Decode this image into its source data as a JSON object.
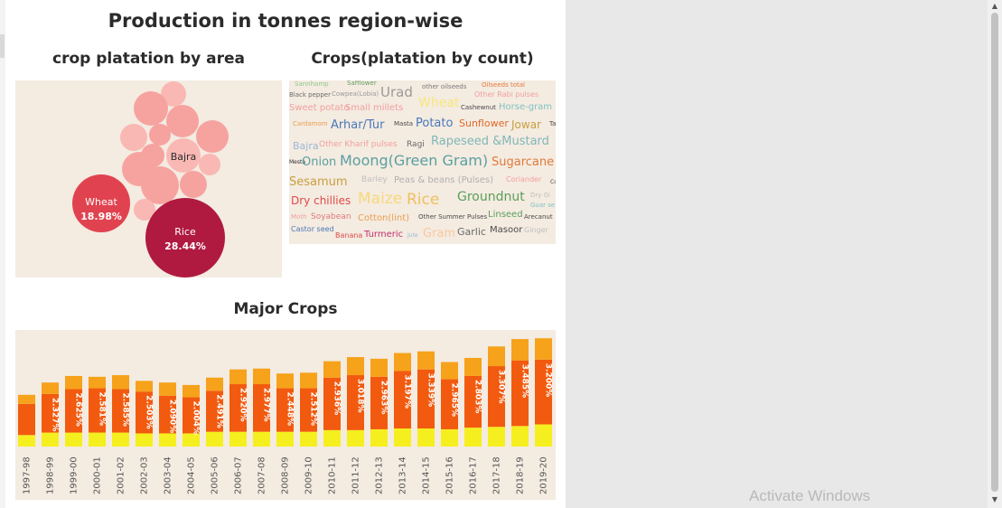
{
  "dashboard": {
    "title": "Production in tonnes region-wise"
  },
  "bubble": {
    "title": "crop platation by area",
    "labels": [
      {
        "name": "Wheat",
        "pct": "18.98%"
      },
      {
        "name": "Rice",
        "pct": "28.44%"
      },
      {
        "name": "Bajra",
        "pct": ""
      }
    ],
    "colors": {
      "wheat": "#e0434f",
      "rice": "#b01a40",
      "other": "#f6a3a0",
      "light": "#f9b8b3"
    }
  },
  "wordcloud": {
    "title": "Crops(platation by count)",
    "words": [
      {
        "text": "Sannhamp",
        "color": "#8fc98f"
      },
      {
        "text": "Safflower",
        "color": "#5fa05f"
      },
      {
        "text": "other oilseeds",
        "color": "#7a7a7a"
      },
      {
        "text": "Oilseeds total",
        "color": "#e57a3c"
      },
      {
        "text": "Black pepper",
        "color": "#6a6a6a"
      },
      {
        "text": "Cowpea(Lobia)",
        "color": "#9a9a9a"
      },
      {
        "text": "Urad",
        "color": "#9a9a9a"
      },
      {
        "text": "Other Rabi pulses",
        "color": "#f2a0a0"
      },
      {
        "text": "Sweet potato",
        "color": "#f2a0a0"
      },
      {
        "text": "Small millets",
        "color": "#f2a0a0"
      },
      {
        "text": "Wheat",
        "color": "#f8e87a"
      },
      {
        "text": "Cashewnut",
        "color": "#4a4a4a"
      },
      {
        "text": "Horse-gram",
        "color": "#7fc4c4"
      },
      {
        "text": "Cardamom",
        "color": "#e8a050"
      },
      {
        "text": "Arhar/Tur",
        "color": "#4a78b8"
      },
      {
        "text": "Masta",
        "color": "#4a4a4a"
      },
      {
        "text": "Potato",
        "color": "#4a78b8"
      },
      {
        "text": "Sunflower",
        "color": "#e06a2a"
      },
      {
        "text": "Jowar",
        "color": "#c8a040"
      },
      {
        "text": "Ta",
        "color": "#4a4a4a"
      },
      {
        "text": "Bajra",
        "color": "#9ab8d8"
      },
      {
        "text": "Other Kharif pulses",
        "color": "#f2a0a0"
      },
      {
        "text": "Ragi",
        "color": "#6a6a6a"
      },
      {
        "text": "Rapeseed &Mustard",
        "color": "#7fb8b8"
      },
      {
        "text": "Mesta",
        "color": "#2b2b2b"
      },
      {
        "text": "Onion",
        "color": "#5aa0a0"
      },
      {
        "text": "Moong(Green Gram)",
        "color": "#5aa0a0"
      },
      {
        "text": "Sugarcane",
        "color": "#e07a3a"
      },
      {
        "text": "Sesamum",
        "color": "#c8a040"
      },
      {
        "text": "Barley",
        "color": "#c0c0c0"
      },
      {
        "text": "Peas & beans (Pulses)",
        "color": "#b0b0b0"
      },
      {
        "text": "Coriander",
        "color": "#f2a0a0"
      },
      {
        "text": "Co",
        "color": "#4a4a4a"
      },
      {
        "text": "Dry chillies",
        "color": "#e04a4a"
      },
      {
        "text": "Maize",
        "color": "#f8d87a"
      },
      {
        "text": "Rice",
        "color": "#f0c060"
      },
      {
        "text": "Groundnut",
        "color": "#5aa05a"
      },
      {
        "text": "Dry Gi",
        "color": "#c0c0c0"
      },
      {
        "text": "Guar se",
        "color": "#7fc4c4"
      },
      {
        "text": "Moth",
        "color": "#f2a0a0"
      },
      {
        "text": "Soyabean",
        "color": "#e07a7a"
      },
      {
        "text": "Cotton(lint)",
        "color": "#e8a050"
      },
      {
        "text": "Other Summer Pulses",
        "color": "#4a4a4a"
      },
      {
        "text": "Linseed",
        "color": "#5aa05a"
      },
      {
        "text": "Arecanut",
        "color": "#4a4a4a"
      },
      {
        "text": "Castor seed",
        "color": "#4a78b8"
      },
      {
        "text": "Banana",
        "color": "#e04a4a"
      },
      {
        "text": "Turmeric",
        "color": "#c03070"
      },
      {
        "text": "Jute",
        "color": "#9ab8d8"
      },
      {
        "text": "Gram",
        "color": "#f8c8a0"
      },
      {
        "text": "Garlic",
        "color": "#6a6a6a"
      },
      {
        "text": "Masoor",
        "color": "#4a4a4a"
      },
      {
        "text": "Ginger",
        "color": "#c0c0c0"
      }
    ]
  },
  "chart_data": {
    "type": "bar",
    "title": "Major Crops",
    "categories": [
      "1997-98",
      "1998-99",
      "1999-00",
      "2000-01",
      "2001-02",
      "2002-03",
      "2003-04",
      "2004-05",
      "2005-06",
      "2006-07",
      "2007-08",
      "2008-09",
      "2009-10",
      "2010-11",
      "2011-12",
      "2012-13",
      "2013-14",
      "2014-15",
      "2015-16",
      "2016-17",
      "2017-18",
      "2018-19",
      "2019-20"
    ],
    "stacked": true,
    "series": [
      {
        "color": "#f5ef1f",
        "values": [
          14,
          17,
          17,
          17,
          17,
          16,
          16,
          16,
          18,
          18,
          18,
          18,
          18,
          20,
          20,
          21,
          22,
          22,
          21,
          23,
          24,
          25,
          27
        ]
      },
      {
        "color": "#f25a0f",
        "values": [
          38,
          47,
          53,
          54,
          53,
          51,
          46,
          44,
          50,
          58,
          58,
          53,
          53,
          64,
          67,
          64,
          70,
          72,
          61,
          63,
          74,
          80,
          79
        ]
      },
      {
        "color": "#f6a21a",
        "values": [
          11,
          14,
          16,
          14,
          17,
          13,
          16,
          15,
          16,
          18,
          19,
          18,
          19,
          20,
          22,
          22,
          22,
          22,
          21,
          22,
          24,
          26,
          26
        ]
      }
    ],
    "data_labels": [
      "",
      "2.327%",
      "2.625%",
      "2.581%",
      "2.585%",
      "2.503%",
      "2.090%",
      "2.004%",
      "2.491%",
      "2.920%",
      "2.977%",
      "2.448%",
      "2.512%",
      "2.936%",
      "3.018%",
      "2.963%",
      "3.197%",
      "3.339%",
      "2.965%",
      "2.803%",
      "3.307%",
      "3.485%",
      "3.200%"
    ],
    "ylim": [
      0,
      130
    ],
    "grid": false
  },
  "system": {
    "watermark": "Activate Windows"
  }
}
